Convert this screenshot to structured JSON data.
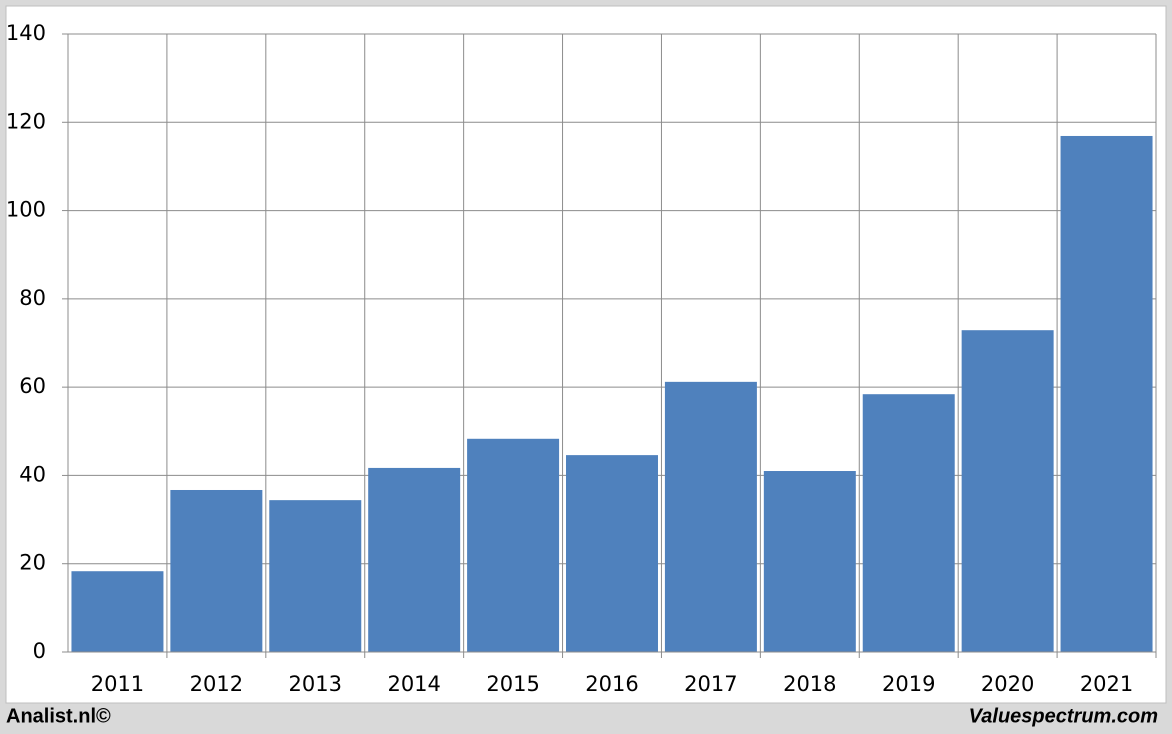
{
  "chart_data": {
    "type": "bar",
    "categories": [
      "2011",
      "2012",
      "2013",
      "2014",
      "2015",
      "2016",
      "2017",
      "2018",
      "2019",
      "2020",
      "2021"
    ],
    "values": [
      18.3,
      36.7,
      34.4,
      41.7,
      48.3,
      44.6,
      61.2,
      41.0,
      58.4,
      72.9,
      116.9
    ],
    "color": "#4f81bd",
    "ylim": [
      0,
      140
    ],
    "yticks": [
      0,
      20,
      40,
      60,
      80,
      100,
      120,
      140
    ],
    "grid": true
  },
  "footer": {
    "left": "Analist.nl©",
    "right": "Valuespectrum.com"
  }
}
